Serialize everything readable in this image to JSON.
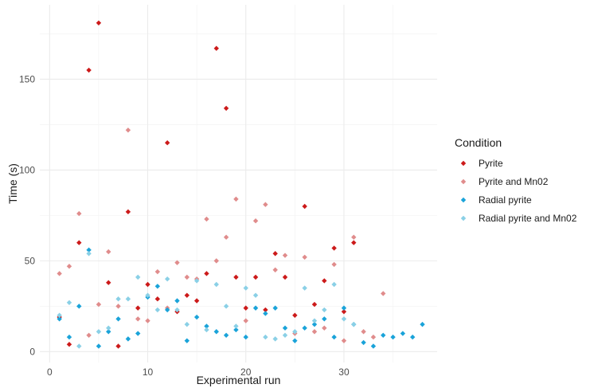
{
  "chart_data": {
    "type": "scatter",
    "title": "",
    "xlabel": "Experimental run",
    "ylabel": "Time (s)",
    "xlim": [
      -1,
      39.5
    ],
    "ylim": [
      -6,
      191
    ],
    "xticks": [
      0,
      10,
      20,
      30
    ],
    "yticks": [
      0,
      50,
      100,
      150
    ],
    "grid": true,
    "legend_title": "Condition",
    "legend_position": "right",
    "series": [
      {
        "name": "Pyrite",
        "color": "#cc1a1a",
        "points": [
          [
            1,
            19
          ],
          [
            2,
            4
          ],
          [
            3,
            60
          ],
          [
            4,
            155
          ],
          [
            5,
            181
          ],
          [
            6,
            38
          ],
          [
            7,
            3
          ],
          [
            8,
            77
          ],
          [
            9,
            24
          ],
          [
            10,
            37
          ],
          [
            11,
            29
          ],
          [
            12,
            115
          ],
          [
            13,
            22
          ],
          [
            14,
            31
          ],
          [
            15,
            28
          ],
          [
            16,
            43
          ],
          [
            17,
            167
          ],
          [
            18,
            134
          ],
          [
            19,
            41
          ],
          [
            20,
            24
          ],
          [
            21,
            41
          ],
          [
            22,
            23
          ],
          [
            23,
            54
          ],
          [
            24,
            41
          ],
          [
            25,
            20
          ],
          [
            26,
            80
          ],
          [
            27,
            26
          ],
          [
            28,
            39
          ],
          [
            29,
            57
          ],
          [
            30,
            22
          ],
          [
            31,
            60
          ]
        ]
      },
      {
        "name": "Pyrite and Mn02",
        "color": "#e08c8c",
        "points": [
          [
            1,
            43
          ],
          [
            2,
            47
          ],
          [
            3,
            76
          ],
          [
            4,
            9
          ],
          [
            5,
            26
          ],
          [
            6,
            55
          ],
          [
            7,
            25
          ],
          [
            8,
            122
          ],
          [
            9,
            18
          ],
          [
            10,
            17
          ],
          [
            11,
            44
          ],
          [
            12,
            24
          ],
          [
            13,
            49
          ],
          [
            14,
            41
          ],
          [
            15,
            40
          ],
          [
            16,
            73
          ],
          [
            17,
            50
          ],
          [
            18,
            63
          ],
          [
            19,
            84
          ],
          [
            20,
            17
          ],
          [
            21,
            72
          ],
          [
            22,
            81
          ],
          [
            23,
            45
          ],
          [
            24,
            53
          ],
          [
            25,
            10
          ],
          [
            26,
            52
          ],
          [
            27,
            11
          ],
          [
            28,
            13
          ],
          [
            29,
            48
          ],
          [
            30,
            6
          ],
          [
            31,
            63
          ],
          [
            32,
            11
          ],
          [
            33,
            8
          ],
          [
            34,
            32
          ]
        ]
      },
      {
        "name": "Radial pyrite",
        "color": "#1aa3d9",
        "points": [
          [
            1,
            18
          ],
          [
            2,
            8
          ],
          [
            3,
            25
          ],
          [
            4,
            56
          ],
          [
            5,
            3
          ],
          [
            6,
            11
          ],
          [
            7,
            18
          ],
          [
            8,
            7
          ],
          [
            9,
            10
          ],
          [
            10,
            30
          ],
          [
            11,
            36
          ],
          [
            12,
            23
          ],
          [
            13,
            28
          ],
          [
            14,
            6
          ],
          [
            15,
            19
          ],
          [
            16,
            14
          ],
          [
            17,
            11
          ],
          [
            18,
            9
          ],
          [
            19,
            12
          ],
          [
            20,
            8
          ],
          [
            21,
            24
          ],
          [
            22,
            21
          ],
          [
            23,
            24
          ],
          [
            24,
            13
          ],
          [
            25,
            6
          ],
          [
            26,
            13
          ],
          [
            27,
            15
          ],
          [
            28,
            18
          ],
          [
            29,
            8
          ],
          [
            30,
            24
          ],
          [
            31,
            15
          ],
          [
            32,
            5
          ],
          [
            33,
            3
          ],
          [
            34,
            9
          ],
          [
            35,
            8
          ],
          [
            36,
            10
          ],
          [
            37,
            8
          ],
          [
            38,
            15
          ]
        ]
      },
      {
        "name": "Radial pyrite and Mn02",
        "color": "#8ad0e6",
        "points": [
          [
            1,
            20
          ],
          [
            2,
            27
          ],
          [
            3,
            3
          ],
          [
            4,
            54
          ],
          [
            5,
            11
          ],
          [
            6,
            13
          ],
          [
            7,
            29
          ],
          [
            8,
            29
          ],
          [
            9,
            41
          ],
          [
            10,
            31
          ],
          [
            11,
            23
          ],
          [
            12,
            40
          ],
          [
            13,
            23
          ],
          [
            14,
            15
          ],
          [
            15,
            39
          ],
          [
            16,
            12
          ],
          [
            17,
            37
          ],
          [
            18,
            25
          ],
          [
            19,
            14
          ],
          [
            20,
            35
          ],
          [
            21,
            31
          ],
          [
            22,
            8
          ],
          [
            23,
            7
          ],
          [
            24,
            9
          ],
          [
            25,
            11
          ],
          [
            26,
            35
          ],
          [
            27,
            17
          ],
          [
            28,
            23
          ],
          [
            29,
            37
          ],
          [
            30,
            18
          ],
          [
            31,
            15
          ]
        ]
      }
    ]
  }
}
